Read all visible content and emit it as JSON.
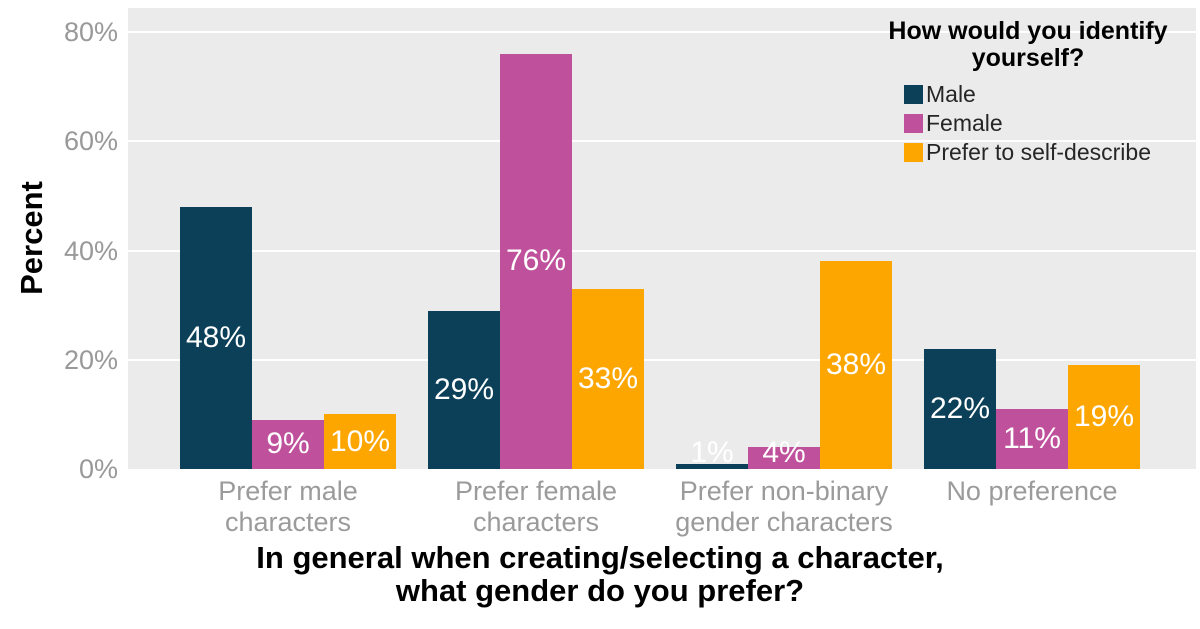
{
  "chart_data": {
    "type": "bar",
    "title": "",
    "ylabel": "Percent",
    "xlabel_lines": [
      "In general when creating/selecting a character,",
      "what gender do you prefer?"
    ],
    "categories": [
      "Prefer male characters",
      "Prefer female characters",
      "Prefer non-binary gender characters",
      "No preference"
    ],
    "category_lines": [
      [
        "Prefer male",
        "characters"
      ],
      [
        "Prefer female",
        "characters"
      ],
      [
        "Prefer non-binary",
        "gender characters"
      ],
      [
        "No preference"
      ]
    ],
    "series": [
      {
        "name": "Male",
        "color": "#0c4059",
        "values": [
          48,
          29,
          1,
          22
        ]
      },
      {
        "name": "Female",
        "color": "#bf519c",
        "values": [
          9,
          76,
          4,
          11
        ]
      },
      {
        "name": "Prefer to self-describe",
        "color": "#fda600",
        "values": [
          10,
          33,
          38,
          19
        ]
      }
    ],
    "bar_value_suffix": "%",
    "ylim": [
      0,
      80
    ],
    "yticks": [
      0,
      20,
      40,
      60,
      80
    ],
    "ytick_labels": [
      "0%",
      "20%",
      "40%",
      "60%",
      "80%"
    ],
    "legend": {
      "title_lines": [
        "How would you identify",
        "yourself?"
      ],
      "position": "top-right-inside"
    },
    "grid": "major-horizontal",
    "colors": {
      "plot_bg": "#ebebeb",
      "gridline": "#ffffff",
      "axis_tick_text": "#999999",
      "axis_title_text": "#000000",
      "bar_label_text": "#ffffff"
    }
  }
}
